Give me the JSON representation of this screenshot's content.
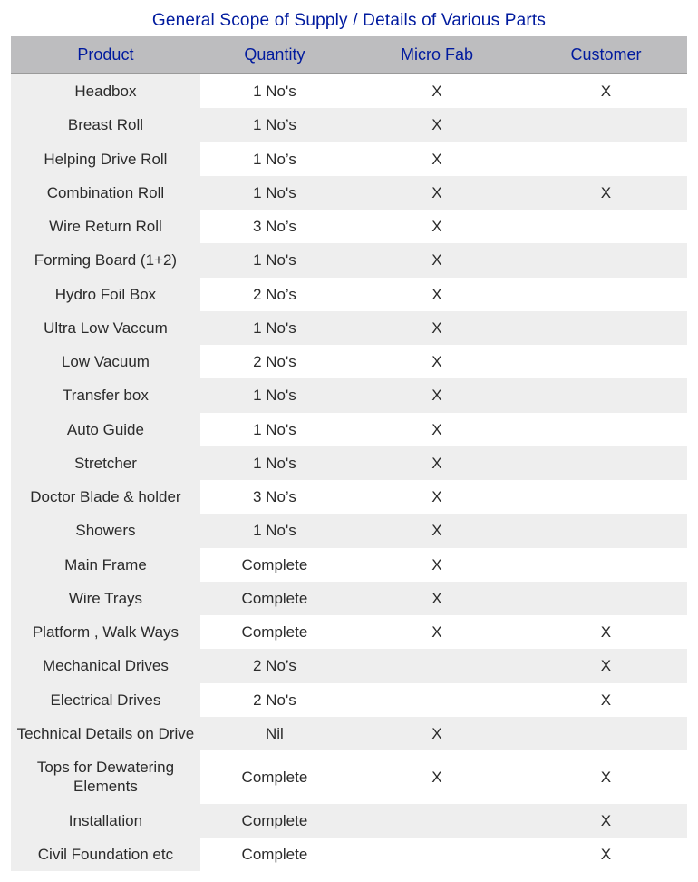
{
  "title": "General Scope of Supply / Details of Various Parts",
  "colors": {
    "title": "#001a9e",
    "header_text": "#001a9e",
    "header_bg": "#bdbdbf",
    "product_col_bg": "#eeeeee",
    "row_even_bg": "#eeeeee",
    "row_odd_bg": "#ffffff",
    "cell_text": "#2b2b2b"
  },
  "typography": {
    "title_fontsize": 19,
    "header_fontsize": 18,
    "cell_fontsize": 17
  },
  "columns": [
    {
      "key": "product",
      "label": "Product"
    },
    {
      "key": "quantity",
      "label": "Quantity"
    },
    {
      "key": "micro_fab",
      "label": "Micro Fab"
    },
    {
      "key": "customer",
      "label": "Customer"
    }
  ],
  "rows": [
    {
      "product": "Headbox",
      "quantity": "1 No's",
      "micro_fab": "X",
      "customer": "X"
    },
    {
      "product": "Breast Roll",
      "quantity": "1 No’s",
      "micro_fab": "X",
      "customer": ""
    },
    {
      "product": "Helping Drive Roll",
      "quantity": "1 No’s",
      "micro_fab": "X",
      "customer": ""
    },
    {
      "product": "Combination Roll",
      "quantity": "1 No's",
      "micro_fab": "X",
      "customer": "X"
    },
    {
      "product": "Wire Return Roll",
      "quantity": "3 No’s",
      "micro_fab": "X",
      "customer": ""
    },
    {
      "product": "Forming Board (1+2)",
      "quantity": "1 No's",
      "micro_fab": "X",
      "customer": ""
    },
    {
      "product": "Hydro Foil Box",
      "quantity": "2 No’s",
      "micro_fab": "X",
      "customer": ""
    },
    {
      "product": "Ultra Low Vaccum",
      "quantity": "1 No's",
      "micro_fab": "X",
      "customer": ""
    },
    {
      "product": "Low Vacuum",
      "quantity": "2 No's",
      "micro_fab": "X",
      "customer": ""
    },
    {
      "product": "Transfer box",
      "quantity": "1 No's",
      "micro_fab": "X",
      "customer": ""
    },
    {
      "product": "Auto Guide",
      "quantity": "1 No's",
      "micro_fab": "X",
      "customer": ""
    },
    {
      "product": "Stretcher",
      "quantity": "1 No's",
      "micro_fab": "X",
      "customer": ""
    },
    {
      "product": "Doctor Blade & holder",
      "quantity": "3 No’s",
      "micro_fab": "X",
      "customer": ""
    },
    {
      "product": "Showers",
      "quantity": "1 No's",
      "micro_fab": "X",
      "customer": ""
    },
    {
      "product": "Main Frame",
      "quantity": "Complete",
      "micro_fab": "X",
      "customer": ""
    },
    {
      "product": "Wire Trays",
      "quantity": "Complete",
      "micro_fab": "X",
      "customer": ""
    },
    {
      "product": "Platform , Walk Ways",
      "quantity": "Complete",
      "micro_fab": "X",
      "customer": "X"
    },
    {
      "product": "Mechanical Drives",
      "quantity": "2 No’s",
      "micro_fab": "",
      "customer": "X"
    },
    {
      "product": "Electrical Drives",
      "quantity": "2 No's",
      "micro_fab": "",
      "customer": "X"
    },
    {
      "product": "Technical Details on Drive",
      "quantity": "Nil",
      "micro_fab": "X",
      "customer": ""
    },
    {
      "product": "Tops for Dewatering Elements",
      "quantity": "Complete",
      "micro_fab": "X",
      "customer": "X"
    },
    {
      "product": "Installation",
      "quantity": "Complete",
      "micro_fab": "",
      "customer": "X"
    },
    {
      "product": "Civil Foundation etc",
      "quantity": "Complete",
      "micro_fab": "",
      "customer": "X"
    }
  ]
}
